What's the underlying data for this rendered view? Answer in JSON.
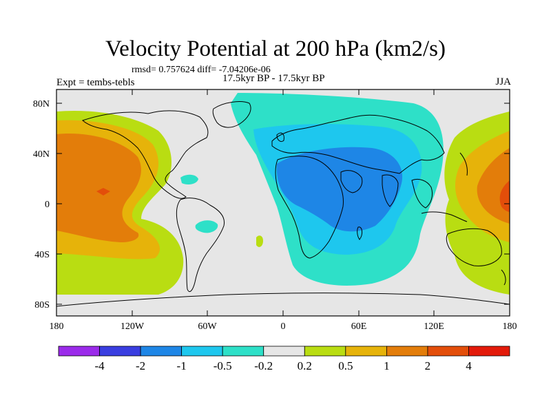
{
  "title": "Velocity Potential at 200 hPa (km2/s)",
  "stats": "rmsd= 0.757624 diff= -7.04206e-06",
  "expt": "Expt = tembs-tebls",
  "period": "17.5kyr BP - 17.5kyr BP",
  "season": "JJA",
  "lat_ticks": [
    "80N",
    "40N",
    "0",
    "40S",
    "80S"
  ],
  "lon_ticks": [
    "180",
    "120W",
    "60W",
    "0",
    "60E",
    "120E",
    "180"
  ],
  "colorbar": {
    "colors": [
      "#9b2bea",
      "#3a3ee0",
      "#1e86e6",
      "#1ec7ee",
      "#2ee0c8",
      "#e6e6e6",
      "#b9dd12",
      "#e6b30a",
      "#e37d0a",
      "#e34e0a",
      "#e31a0a"
    ],
    "labels": [
      "-4",
      "-2",
      "-1",
      "-0.5",
      "-0.2",
      "0.2",
      "0.5",
      "1",
      "2",
      "4"
    ]
  }
}
